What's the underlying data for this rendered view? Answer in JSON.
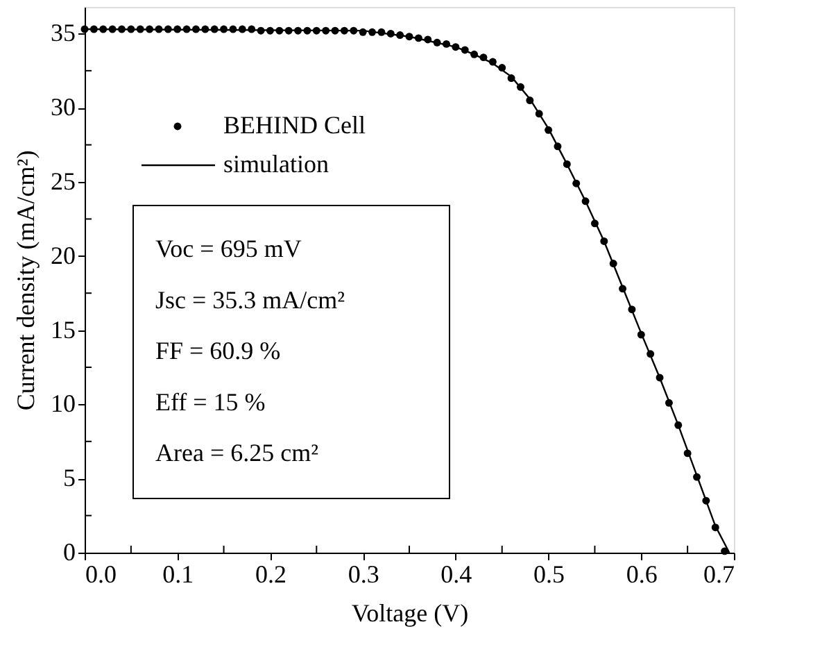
{
  "chart_data": {
    "type": "scatter",
    "xlabel": "Voltage (V)",
    "ylabel": "Current density (mA/cm²)",
    "xlim": [
      0,
      0.7
    ],
    "ylim": [
      0,
      36.8
    ],
    "xticks": [
      {
        "value": 0,
        "label": "0.0"
      },
      {
        "value": 0.05,
        "label": null
      },
      0.1,
      {
        "value": 0.15,
        "label": null
      },
      0.2,
      {
        "value": 0.25,
        "label": null
      },
      0.3,
      {
        "value": 0.35,
        "label": null
      },
      0.4,
      {
        "value": 0.45,
        "label": null
      },
      0.5,
      {
        "value": 0.55,
        "label": null
      },
      0.6,
      {
        "value": 0.65,
        "label": null
      },
      0.7
    ],
    "yticks": [
      0,
      {
        "value": 2.5,
        "label": null
      },
      5,
      {
        "value": 7.5,
        "label": null
      },
      10,
      {
        "value": 12.5,
        "label": null
      },
      15,
      {
        "value": 17.5,
        "label": null
      },
      20,
      {
        "value": 22.5,
        "label": null
      },
      25,
      {
        "value": 27.5,
        "label": null
      },
      30,
      {
        "value": 32.5,
        "label": null
      },
      35
    ],
    "grid": false,
    "legend": "top left",
    "annotations": [
      "Voc = 695 mV",
      "Jsc = 35.3 mA/cm²",
      "FF = 60.9 %",
      "Eff = 15 %",
      "Area = 6.25 cm²"
    ],
    "series": [
      {
        "name": "BEHIND Cell",
        "type": "scatter",
        "marker": "circle",
        "color": "#000000",
        "x": [
          0,
          0.01,
          0.02,
          0.03,
          0.04,
          0.05,
          0.06,
          0.07,
          0.08,
          0.09,
          0.1,
          0.11,
          0.12,
          0.13,
          0.14,
          0.15,
          0.16,
          0.17,
          0.18,
          0.19,
          0.2,
          0.21,
          0.22,
          0.23,
          0.24,
          0.25,
          0.26,
          0.27,
          0.28,
          0.29,
          0.3,
          0.31,
          0.32,
          0.33,
          0.34,
          0.35,
          0.36,
          0.37,
          0.38,
          0.39,
          0.4,
          0.41,
          0.42,
          0.43,
          0.44,
          0.45,
          0.46,
          0.47,
          0.48,
          0.49,
          0.5,
          0.51,
          0.52,
          0.53,
          0.54,
          0.55,
          0.56,
          0.57,
          0.58,
          0.59,
          0.6,
          0.61,
          0.62,
          0.63,
          0.64,
          0.65,
          0.66,
          0.67,
          0.68,
          0.69
        ],
        "values": [
          35.3,
          35.3,
          35.3,
          35.3,
          35.3,
          35.3,
          35.3,
          35.3,
          35.3,
          35.3,
          35.3,
          35.3,
          35.3,
          35.3,
          35.3,
          35.3,
          35.3,
          35.3,
          35.3,
          35.2,
          35.2,
          35.2,
          35.2,
          35.2,
          35.2,
          35.2,
          35.2,
          35.2,
          35.2,
          35.2,
          35.1,
          35.1,
          35.1,
          35.0,
          34.9,
          34.8,
          34.7,
          34.6,
          34.4,
          34.3,
          34.1,
          33.9,
          33.6,
          33.4,
          33.1,
          32.7,
          32.0,
          31.4,
          30.5,
          29.6,
          28.5,
          27.4,
          26.2,
          24.9,
          23.7,
          22.2,
          21.0,
          19.5,
          17.8,
          16.4,
          14.7,
          13.4,
          11.8,
          10.1,
          8.6,
          6.7,
          5.1,
          3.5,
          1.7,
          0.1
        ]
      },
      {
        "name": "simulation",
        "type": "line",
        "marker": "none",
        "color": "#000000",
        "x": [
          0,
          0.3,
          0.35,
          0.4,
          0.42,
          0.44,
          0.46,
          0.48,
          0.5,
          0.52,
          0.54,
          0.56,
          0.58,
          0.6,
          0.62,
          0.64,
          0.66,
          0.68,
          0.695
        ],
        "values": [
          35.3,
          35.2,
          34.8,
          34.1,
          33.6,
          33.0,
          32.1,
          30.6,
          28.6,
          26.2,
          23.7,
          21.0,
          17.9,
          14.8,
          11.8,
          8.6,
          5.2,
          1.8,
          0
        ]
      }
    ]
  }
}
